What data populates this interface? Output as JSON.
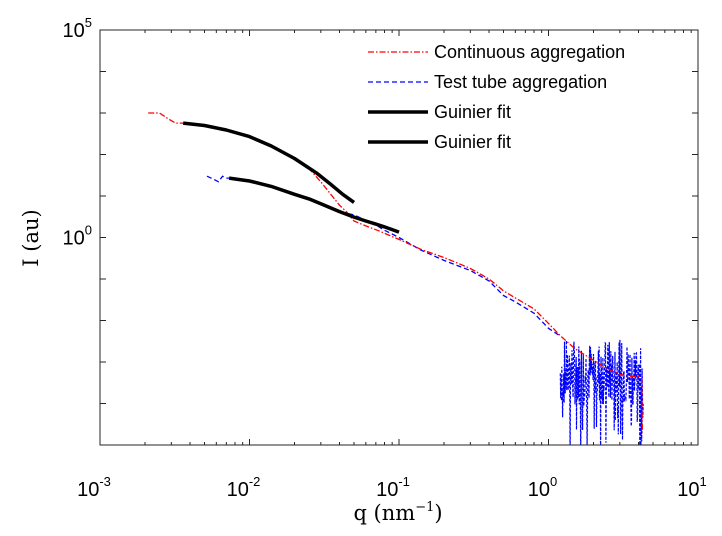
{
  "chart_data": {
    "type": "line",
    "title": "",
    "xlabel": "q (nm",
    "xlabel_sup": "−1",
    "xlabel_end": ")",
    "ylabel": "I (au)",
    "xscale": "log",
    "yscale": "log",
    "xlim": [
      0.001,
      10
    ],
    "ylim": [
      1e-05,
      100000
    ],
    "grid": false,
    "legend_position": "top-right",
    "x_ticks": [
      {
        "value": 0.001,
        "base": "10",
        "exp": "-3"
      },
      {
        "value": 0.01,
        "base": "10",
        "exp": "-2"
      },
      {
        "value": 0.1,
        "base": "10",
        "exp": "-1"
      },
      {
        "value": 1,
        "base": "10",
        "exp": "0"
      },
      {
        "value": 10,
        "base": "10",
        "exp": "1"
      }
    ],
    "y_ticks": [
      {
        "value": 1,
        "base": "10",
        "exp": "0"
      },
      {
        "value": 100000,
        "base": "10",
        "exp": "5"
      }
    ],
    "series": [
      {
        "name": "Continuous aggregation",
        "color": "#ff0000",
        "style": "dashdot",
        "x": [
          0.0021,
          0.0025,
          0.0029,
          0.0032,
          0.0036,
          0.005,
          0.007,
          0.01,
          0.014,
          0.02,
          0.025,
          0.03,
          0.035,
          0.04,
          0.045,
          0.05,
          0.06,
          0.075,
          0.09,
          0.1,
          0.14,
          0.2,
          0.3,
          0.4,
          0.5,
          0.6,
          0.8,
          1.0,
          1.2,
          1.5,
          2.0,
          2.5,
          3.0,
          3.5,
          4.0,
          4.2,
          4.25
        ],
        "y": [
          1000,
          1000,
          700,
          570,
          570,
          500,
          390,
          270,
          160,
          85,
          46,
          22,
          11,
          6,
          4,
          2.5,
          1.9,
          1.4,
          1.05,
          0.9,
          0.52,
          0.33,
          0.18,
          0.1,
          0.052,
          0.035,
          0.019,
          0.0085,
          0.0043,
          0.0021,
          0.0011,
          0.00068,
          0.0005,
          0.00045,
          0.00045,
          0.0004,
          2e-05
        ]
      },
      {
        "name": "Test tube aggregation",
        "color": "#0000ff",
        "style": "dashed",
        "x": [
          0.0052,
          0.0058,
          0.0062,
          0.0066,
          0.007,
          0.008,
          0.01,
          0.014,
          0.02,
          0.025,
          0.03,
          0.04,
          0.05,
          0.06,
          0.07,
          0.08,
          0.1,
          0.14,
          0.2,
          0.3,
          0.4,
          0.5,
          0.6,
          0.8,
          1.0,
          1.2
        ],
        "y": [
          30,
          25,
          22,
          30,
          27,
          27,
          23,
          17,
          11,
          9,
          6.5,
          4.2,
          3.5,
          2.6,
          2.0,
          1.5,
          1.0,
          0.5,
          0.28,
          0.16,
          0.09,
          0.04,
          0.028,
          0.015,
          0.0065,
          0.0042
        ],
        "noisy_tail": {
          "x_start": 1.2,
          "x_end": 4.3,
          "y_center": 0.00055,
          "y_low": 4e-06,
          "y_high": 0.0043
        }
      },
      {
        "name": "Guinier fit",
        "color": "#000000",
        "style": "solid",
        "x": [
          0.0036,
          0.005,
          0.007,
          0.01,
          0.014,
          0.02,
          0.028,
          0.035,
          0.042,
          0.05
        ],
        "y": [
          570,
          500,
          390,
          270,
          160,
          80,
          36,
          19,
          11,
          7
        ]
      },
      {
        "name": "Guinier fit",
        "color": "#000000",
        "style": "solid",
        "x": [
          0.0073,
          0.01,
          0.014,
          0.02,
          0.025,
          0.03,
          0.04,
          0.05,
          0.06,
          0.07,
          0.08,
          0.09,
          0.1
        ],
        "y": [
          27,
          23,
          17,
          11,
          8.5,
          6.5,
          4.2,
          3.1,
          2.5,
          2.1,
          1.8,
          1.55,
          1.35
        ]
      }
    ]
  }
}
